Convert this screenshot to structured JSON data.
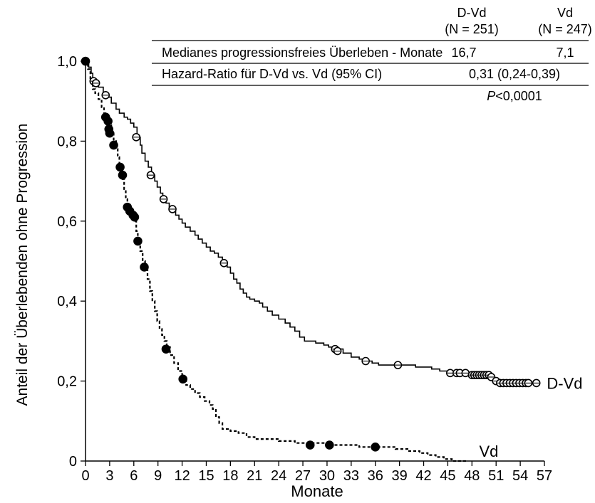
{
  "chart_data": {
    "type": "line",
    "xlabel": "Monate",
    "ylabel": "Anteil der Überlebenden ohne Progression",
    "xlim": [
      0,
      57
    ],
    "ylim": [
      0,
      1.0
    ],
    "x_ticks": [
      "0",
      "3",
      "6",
      "9",
      "12",
      "15",
      "18",
      "21",
      "24",
      "27",
      "30",
      "33",
      "36",
      "39",
      "42",
      "45",
      "48",
      "51",
      "54",
      "57"
    ],
    "y_ticks": [
      {
        "value": 0,
        "label": "0"
      },
      {
        "value": 0.2,
        "label": "0,2"
      },
      {
        "value": 0.4,
        "label": "0,4"
      },
      {
        "value": 0.6,
        "label": "0,6"
      },
      {
        "value": 0.8,
        "label": "0,8"
      },
      {
        "value": 1.0,
        "label": "1,0"
      }
    ],
    "grid": false,
    "series": [
      {
        "name": "D-Vd",
        "line_style": "solid",
        "marker": "open-circle",
        "steps": [
          [
            0,
            1.0
          ],
          [
            0.4,
            0.985
          ],
          [
            0.7,
            0.97
          ],
          [
            0.9,
            0.955
          ],
          [
            1.2,
            0.945
          ],
          [
            1.6,
            0.935
          ],
          [
            2.2,
            0.92
          ],
          [
            2.8,
            0.91
          ],
          [
            3.2,
            0.895
          ],
          [
            3.8,
            0.88
          ],
          [
            4.2,
            0.87
          ],
          [
            4.8,
            0.86
          ],
          [
            5.2,
            0.855
          ],
          [
            5.6,
            0.845
          ],
          [
            6.0,
            0.835
          ],
          [
            6.4,
            0.81
          ],
          [
            6.8,
            0.79
          ],
          [
            7.0,
            0.77
          ],
          [
            7.4,
            0.75
          ],
          [
            7.8,
            0.735
          ],
          [
            8.2,
            0.715
          ],
          [
            8.6,
            0.7
          ],
          [
            8.9,
            0.685
          ],
          [
            9.3,
            0.67
          ],
          [
            9.6,
            0.655
          ],
          [
            10.0,
            0.645
          ],
          [
            10.4,
            0.635
          ],
          [
            10.9,
            0.625
          ],
          [
            11.2,
            0.615
          ],
          [
            11.6,
            0.605
          ],
          [
            12.0,
            0.595
          ],
          [
            12.4,
            0.585
          ],
          [
            13.0,
            0.575
          ],
          [
            13.6,
            0.565
          ],
          [
            14.0,
            0.555
          ],
          [
            14.5,
            0.545
          ],
          [
            15.0,
            0.535
          ],
          [
            15.5,
            0.525
          ],
          [
            16.0,
            0.52
          ],
          [
            16.5,
            0.51
          ],
          [
            17.0,
            0.495
          ],
          [
            17.6,
            0.485
          ],
          [
            18.0,
            0.47
          ],
          [
            18.4,
            0.455
          ],
          [
            18.8,
            0.445
          ],
          [
            19.2,
            0.43
          ],
          [
            19.6,
            0.42
          ],
          [
            20.0,
            0.41
          ],
          [
            20.4,
            0.405
          ],
          [
            21.0,
            0.4
          ],
          [
            21.6,
            0.395
          ],
          [
            22.0,
            0.385
          ],
          [
            22.6,
            0.375
          ],
          [
            23.2,
            0.365
          ],
          [
            24.0,
            0.355
          ],
          [
            24.8,
            0.345
          ],
          [
            25.4,
            0.335
          ],
          [
            26.0,
            0.325
          ],
          [
            26.6,
            0.31
          ],
          [
            27.2,
            0.3
          ],
          [
            28.6,
            0.295
          ],
          [
            29.6,
            0.29
          ],
          [
            30.2,
            0.285
          ],
          [
            31.0,
            0.28
          ],
          [
            32.0,
            0.27
          ],
          [
            33.0,
            0.26
          ],
          [
            34.0,
            0.255
          ],
          [
            34.8,
            0.25
          ],
          [
            35.6,
            0.245
          ],
          [
            36.4,
            0.24
          ],
          [
            37.2,
            0.24
          ],
          [
            39.6,
            0.24
          ],
          [
            41.0,
            0.235
          ],
          [
            42.0,
            0.235
          ],
          [
            43.0,
            0.23
          ],
          [
            44.0,
            0.225
          ],
          [
            45.0,
            0.22
          ],
          [
            48.0,
            0.215
          ],
          [
            50.0,
            0.21
          ],
          [
            50.8,
            0.205
          ],
          [
            51.0,
            0.2
          ],
          [
            51.4,
            0.195
          ],
          [
            52.0,
            0.195
          ],
          [
            54.0,
            0.195
          ],
          [
            56.3,
            0.195
          ]
        ],
        "censored": [
          [
            1.0,
            0.95
          ],
          [
            1.3,
            0.945
          ],
          [
            2.5,
            0.915
          ],
          [
            6.3,
            0.81
          ],
          [
            8.1,
            0.715
          ],
          [
            9.7,
            0.655
          ],
          [
            10.8,
            0.63
          ],
          [
            17.2,
            0.495
          ],
          [
            31.0,
            0.28
          ],
          [
            31.3,
            0.275
          ],
          [
            34.8,
            0.25
          ],
          [
            38.8,
            0.24
          ],
          [
            45.3,
            0.22
          ],
          [
            46.1,
            0.22
          ],
          [
            46.5,
            0.22
          ],
          [
            47.2,
            0.22
          ],
          [
            48.0,
            0.215
          ],
          [
            48.3,
            0.215
          ],
          [
            48.6,
            0.215
          ],
          [
            48.9,
            0.215
          ],
          [
            49.2,
            0.215
          ],
          [
            49.5,
            0.215
          ],
          [
            49.8,
            0.215
          ],
          [
            50.1,
            0.215
          ],
          [
            50.4,
            0.21
          ],
          [
            51.0,
            0.2
          ],
          [
            51.5,
            0.195
          ],
          [
            51.9,
            0.195
          ],
          [
            52.3,
            0.195
          ],
          [
            52.7,
            0.195
          ],
          [
            53.1,
            0.195
          ],
          [
            53.5,
            0.195
          ],
          [
            53.9,
            0.195
          ],
          [
            54.3,
            0.195
          ],
          [
            54.7,
            0.195
          ],
          [
            55.0,
            0.195
          ],
          [
            56.0,
            0.195
          ]
        ]
      },
      {
        "name": "Vd",
        "line_style": "dashed",
        "marker": "filled-circle",
        "steps": [
          [
            0,
            1.0
          ],
          [
            0.3,
            0.98
          ],
          [
            0.6,
            0.95
          ],
          [
            0.9,
            0.93
          ],
          [
            1.2,
            0.92
          ],
          [
            1.6,
            0.905
          ],
          [
            2.0,
            0.885
          ],
          [
            2.3,
            0.87
          ],
          [
            2.6,
            0.855
          ],
          [
            2.9,
            0.84
          ],
          [
            3.2,
            0.82
          ],
          [
            3.5,
            0.8
          ],
          [
            3.8,
            0.78
          ],
          [
            4.0,
            0.76
          ],
          [
            4.2,
            0.74
          ],
          [
            4.4,
            0.725
          ],
          [
            4.6,
            0.705
          ],
          [
            4.8,
            0.68
          ],
          [
            5.0,
            0.655
          ],
          [
            5.2,
            0.635
          ],
          [
            5.5,
            0.625
          ],
          [
            5.8,
            0.615
          ],
          [
            6.1,
            0.6
          ],
          [
            6.3,
            0.575
          ],
          [
            6.5,
            0.55
          ],
          [
            6.8,
            0.525
          ],
          [
            7.1,
            0.5
          ],
          [
            7.4,
            0.48
          ],
          [
            7.7,
            0.455
          ],
          [
            8.0,
            0.425
          ],
          [
            8.3,
            0.4
          ],
          [
            8.6,
            0.375
          ],
          [
            8.9,
            0.35
          ],
          [
            9.2,
            0.33
          ],
          [
            9.5,
            0.315
          ],
          [
            9.8,
            0.3
          ],
          [
            10.1,
            0.285
          ],
          [
            10.5,
            0.265
          ],
          [
            11.0,
            0.245
          ],
          [
            11.5,
            0.225
          ],
          [
            12.0,
            0.205
          ],
          [
            12.5,
            0.19
          ],
          [
            13.0,
            0.18
          ],
          [
            13.6,
            0.17
          ],
          [
            14.2,
            0.16
          ],
          [
            14.8,
            0.15
          ],
          [
            15.4,
            0.14
          ],
          [
            15.8,
            0.13
          ],
          [
            16.2,
            0.11
          ],
          [
            16.6,
            0.095
          ],
          [
            17.0,
            0.08
          ],
          [
            18.0,
            0.075
          ],
          [
            19.0,
            0.07
          ],
          [
            20.0,
            0.06
          ],
          [
            21.0,
            0.055
          ],
          [
            22.0,
            0.055
          ],
          [
            24.0,
            0.05
          ],
          [
            26.0,
            0.045
          ],
          [
            30.4,
            0.04
          ],
          [
            34.0,
            0.035
          ],
          [
            37.0,
            0.035
          ],
          [
            38.5,
            0.03
          ],
          [
            40.0,
            0.025
          ],
          [
            41.5,
            0.02
          ],
          [
            42.5,
            0.015
          ],
          [
            43.5,
            0.01
          ],
          [
            44.5,
            0.005
          ],
          [
            45.5,
            0.0
          ],
          [
            47.5,
            0.0
          ]
        ],
        "censored": [
          [
            0.0,
            1.0
          ],
          [
            2.5,
            0.86
          ],
          [
            2.8,
            0.85
          ],
          [
            2.9,
            0.83
          ],
          [
            3.0,
            0.82
          ],
          [
            3.5,
            0.79
          ],
          [
            4.3,
            0.735
          ],
          [
            4.6,
            0.715
          ],
          [
            5.2,
            0.635
          ],
          [
            5.5,
            0.625
          ],
          [
            5.9,
            0.615
          ],
          [
            6.1,
            0.61
          ],
          [
            6.5,
            0.55
          ],
          [
            7.3,
            0.485
          ],
          [
            10.0,
            0.28
          ],
          [
            12.1,
            0.205
          ],
          [
            27.9,
            0.04
          ],
          [
            30.3,
            0.04
          ],
          [
            36.0,
            0.035
          ]
        ]
      }
    ],
    "series_labels": [
      {
        "series": "D-Vd",
        "x": 57.3,
        "y": 0.195
      },
      {
        "series": "Vd",
        "x": 48.9,
        "y": 0.025
      }
    ]
  },
  "summary_table": {
    "headers": [
      {
        "name": "D-Vd",
        "n": "(N = 251)"
      },
      {
        "name": "Vd",
        "n": "(N = 247)"
      }
    ],
    "rows": [
      {
        "label": "Medianes progressionsfreies Überleben - Monate",
        "dvd": "16,7",
        "vd": "7,1"
      },
      {
        "label": "Hazard-Ratio für D-Vd vs. Vd (95% CI)",
        "combined": "0,31 (0,24-0,39)"
      }
    ],
    "p_label": "P",
    "p_value": "<0,0001"
  }
}
